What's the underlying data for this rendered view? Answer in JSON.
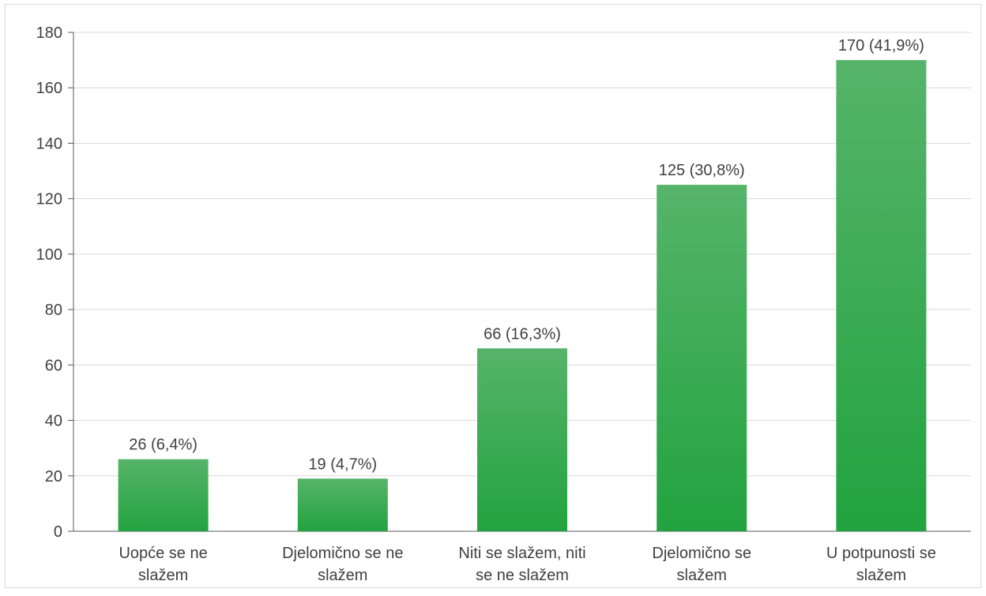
{
  "chart_data": {
    "type": "bar",
    "title": "",
    "xlabel": "",
    "ylabel": "",
    "categories": [
      [
        "Uopće se ne",
        "slažem"
      ],
      [
        "Djelomično se ne",
        "slažem"
      ],
      [
        "Niti se slažem, niti",
        "se ne slažem"
      ],
      [
        "Djelomično se",
        "slažem"
      ],
      [
        "U potpunosti se",
        "slažem"
      ]
    ],
    "values": [
      26,
      19,
      66,
      125,
      170
    ],
    "data_labels": [
      "26 (6,4%)",
      "19 (4,7%)",
      "66 (16,3%)",
      "125 (30,8%)",
      "170 (41,9%)"
    ],
    "ylim": [
      0,
      180
    ],
    "yticks": [
      0,
      20,
      40,
      60,
      80,
      100,
      120,
      140,
      160,
      180
    ],
    "grid": true,
    "legend": "none",
    "colors": {
      "bar_top": "#56b46a",
      "bar_bottom": "#22a33f",
      "grid": "#d9d9d9",
      "axis": "#595959",
      "text": "#404040"
    }
  }
}
